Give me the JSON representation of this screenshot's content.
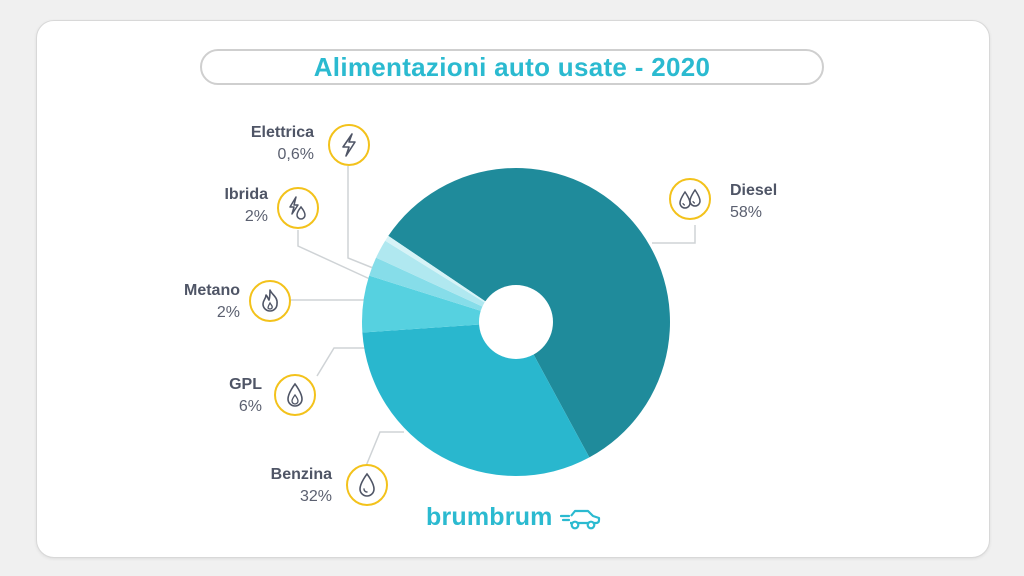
{
  "chart_data": {
    "type": "pie",
    "title": "Alimentazioni auto usate - 2020",
    "slices": [
      {
        "name": "Diesel",
        "value": 58,
        "label": "58%",
        "color": "#1f8b9b",
        "icon": "diesel-drops-icon"
      },
      {
        "name": "Benzina",
        "value": 32,
        "label": "32%",
        "color": "#29b7ce",
        "icon": "fuel-drop-icon"
      },
      {
        "name": "GPL",
        "value": 6,
        "label": "6%",
        "color": "#56d1e0",
        "icon": "gas-flame-icon"
      },
      {
        "name": "Metano",
        "value": 2,
        "label": "2%",
        "color": "#86dde9",
        "icon": "fire-icon"
      },
      {
        "name": "Ibrida",
        "value": 2,
        "label": "2%",
        "color": "#b0e8f0",
        "icon": "hybrid-bolt-drop-icon"
      },
      {
        "name": "Elettrica",
        "value": 0.6,
        "label": "0,6%",
        "color": "#d6f3f7",
        "icon": "lightning-icon"
      }
    ]
  },
  "brand": {
    "name": "brumbrum",
    "color": "#2bbad0",
    "icon": "car-icon"
  },
  "colors": {
    "accent": "#2bbad0",
    "icon_ring": "#f3c21b",
    "label_text": "#4f5566"
  }
}
